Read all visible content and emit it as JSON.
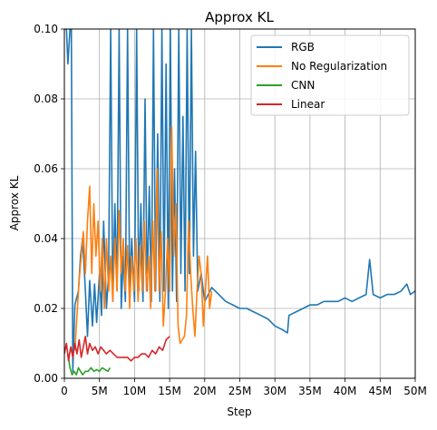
{
  "chart_data": {
    "type": "line",
    "title": "Approx KL",
    "xlabel": "Step",
    "ylabel": "Approx KL",
    "xlim": [
      0,
      50000000
    ],
    "ylim": [
      0,
      0.1
    ],
    "x_ticks": [
      0,
      5000000,
      10000000,
      15000000,
      20000000,
      25000000,
      30000000,
      35000000,
      40000000,
      45000000,
      50000000
    ],
    "x_tick_labels": [
      "0",
      "5M",
      "10M",
      "15M",
      "20M",
      "25M",
      "30M",
      "35M",
      "40M",
      "45M",
      "50M"
    ],
    "y_ticks": [
      0,
      0.02,
      0.04,
      0.06,
      0.08,
      0.1
    ],
    "y_tick_labels": [
      "0.00",
      "0.02",
      "0.04",
      "0.06",
      "0.08",
      "0.10"
    ],
    "grid": true,
    "legend_position": "top-right",
    "series": [
      {
        "name": "RGB",
        "color": "#1f77b4",
        "points": [
          [
            0,
            0.1
          ],
          [
            300000,
            0.1
          ],
          [
            500000,
            0.09
          ],
          [
            800000,
            0.1
          ],
          [
            1000000,
            0.1
          ],
          [
            1200000,
            0.002
          ],
          [
            1500000,
            0.021
          ],
          [
            2000000,
            0.025
          ],
          [
            2300000,
            0.035
          ],
          [
            2600000,
            0.04
          ],
          [
            3000000,
            0.025
          ],
          [
            3300000,
            0.012
          ],
          [
            3600000,
            0.028
          ],
          [
            4000000,
            0.015
          ],
          [
            4300000,
            0.027
          ],
          [
            4600000,
            0.016
          ],
          [
            5000000,
            0.03
          ],
          [
            5300000,
            0.018
          ],
          [
            5600000,
            0.045
          ],
          [
            6000000,
            0.02
          ],
          [
            6300000,
            0.03
          ],
          [
            6600000,
            0.1
          ],
          [
            6900000,
            0.022
          ],
          [
            7200000,
            0.05
          ],
          [
            7500000,
            0.025
          ],
          [
            7800000,
            0.1
          ],
          [
            8100000,
            0.02
          ],
          [
            8400000,
            0.035
          ],
          [
            8700000,
            0.022
          ],
          [
            9000000,
            0.1
          ],
          [
            9300000,
            0.025
          ],
          [
            9600000,
            0.04
          ],
          [
            10000000,
            0.022
          ],
          [
            10300000,
            0.1
          ],
          [
            10600000,
            0.025
          ],
          [
            10900000,
            0.05
          ],
          [
            11200000,
            0.022
          ],
          [
            11500000,
            0.08
          ],
          [
            11800000,
            0.025
          ],
          [
            12100000,
            0.055
          ],
          [
            12400000,
            0.022
          ],
          [
            12700000,
            0.1
          ],
          [
            13000000,
            0.025
          ],
          [
            13300000,
            0.07
          ],
          [
            13600000,
            0.022
          ],
          [
            13900000,
            0.1
          ],
          [
            14200000,
            0.025
          ],
          [
            14500000,
            0.09
          ],
          [
            14800000,
            0.02
          ],
          [
            15100000,
            0.1
          ],
          [
            15400000,
            0.025
          ],
          [
            15700000,
            0.06
          ],
          [
            16000000,
            0.022
          ],
          [
            16300000,
            0.1
          ],
          [
            16600000,
            0.03
          ],
          [
            16900000,
            0.075
          ],
          [
            17200000,
            0.025
          ],
          [
            17500000,
            0.1
          ],
          [
            17800000,
            0.03
          ],
          [
            18100000,
            0.1
          ],
          [
            18400000,
            0.035
          ],
          [
            18700000,
            0.065
          ],
          [
            19000000,
            0.025
          ],
          [
            19500000,
            0.03
          ],
          [
            20000000,
            0.022
          ],
          [
            21000000,
            0.026
          ],
          [
            22000000,
            0.024
          ],
          [
            23000000,
            0.022
          ],
          [
            24000000,
            0.021
          ],
          [
            25000000,
            0.02
          ],
          [
            26000000,
            0.02
          ],
          [
            27000000,
            0.019
          ],
          [
            28000000,
            0.018
          ],
          [
            29000000,
            0.017
          ],
          [
            30000000,
            0.015
          ],
          [
            31000000,
            0.014
          ],
          [
            31800000,
            0.013
          ],
          [
            32000000,
            0.018
          ],
          [
            33000000,
            0.019
          ],
          [
            34000000,
            0.02
          ],
          [
            35000000,
            0.021
          ],
          [
            36000000,
            0.021
          ],
          [
            37000000,
            0.022
          ],
          [
            38000000,
            0.022
          ],
          [
            39000000,
            0.022
          ],
          [
            40000000,
            0.023
          ],
          [
            41000000,
            0.022
          ],
          [
            42000000,
            0.023
          ],
          [
            43000000,
            0.024
          ],
          [
            43500000,
            0.034
          ],
          [
            44000000,
            0.024
          ],
          [
            45000000,
            0.023
          ],
          [
            46000000,
            0.024
          ],
          [
            47000000,
            0.024
          ],
          [
            48000000,
            0.025
          ],
          [
            48800000,
            0.027
          ],
          [
            49300000,
            0.024
          ],
          [
            50000000,
            0.025
          ]
        ]
      },
      {
        "name": "No Regularization",
        "color": "#ff7f0e",
        "points": [
          [
            1500000,
            0.008
          ],
          [
            1800000,
            0.018
          ],
          [
            2100000,
            0.028
          ],
          [
            2400000,
            0.035
          ],
          [
            2700000,
            0.042
          ],
          [
            3000000,
            0.03
          ],
          [
            3300000,
            0.045
          ],
          [
            3600000,
            0.055
          ],
          [
            3900000,
            0.03
          ],
          [
            4200000,
            0.05
          ],
          [
            4500000,
            0.035
          ],
          [
            4800000,
            0.045
          ],
          [
            5100000,
            0.025
          ],
          [
            5400000,
            0.04
          ],
          [
            5700000,
            0.02
          ],
          [
            6000000,
            0.04
          ],
          [
            6300000,
            0.025
          ],
          [
            6600000,
            0.035
          ],
          [
            6900000,
            0.022
          ],
          [
            7200000,
            0.04
          ],
          [
            7500000,
            0.025
          ],
          [
            7800000,
            0.048
          ],
          [
            8100000,
            0.03
          ],
          [
            8400000,
            0.04
          ],
          [
            8700000,
            0.025
          ],
          [
            9000000,
            0.038
          ],
          [
            9300000,
            0.02
          ],
          [
            9600000,
            0.035
          ],
          [
            9900000,
            0.025
          ],
          [
            10200000,
            0.04
          ],
          [
            10500000,
            0.022
          ],
          [
            10800000,
            0.038
          ],
          [
            11100000,
            0.025
          ],
          [
            11400000,
            0.045
          ],
          [
            11700000,
            0.025
          ],
          [
            12000000,
            0.035
          ],
          [
            12300000,
            0.02
          ],
          [
            12600000,
            0.045
          ],
          [
            12900000,
            0.025
          ],
          [
            13200000,
            0.06
          ],
          [
            13500000,
            0.025
          ],
          [
            13800000,
            0.042
          ],
          [
            14100000,
            0.015
          ],
          [
            14400000,
            0.025
          ],
          [
            14700000,
            0.04
          ],
          [
            15000000,
            0.025
          ],
          [
            15300000,
            0.072
          ],
          [
            15600000,
            0.035
          ],
          [
            15900000,
            0.05
          ],
          [
            16200000,
            0.015
          ],
          [
            16500000,
            0.01
          ],
          [
            16800000,
            0.011
          ],
          [
            17100000,
            0.012
          ],
          [
            17400000,
            0.018
          ],
          [
            17700000,
            0.045
          ],
          [
            18000000,
            0.03
          ],
          [
            18300000,
            0.02
          ],
          [
            18600000,
            0.012
          ],
          [
            18900000,
            0.025
          ],
          [
            19200000,
            0.035
          ],
          [
            19500000,
            0.03
          ],
          [
            19800000,
            0.015
          ],
          [
            20100000,
            0.025
          ],
          [
            20400000,
            0.035
          ],
          [
            20700000,
            0.02
          ],
          [
            21000000,
            0.025
          ]
        ]
      },
      {
        "name": "CNN",
        "color": "#2ca02c",
        "points": [
          [
            500000,
            0.007
          ],
          [
            800000,
            0.003
          ],
          [
            1100000,
            0.001
          ],
          [
            1400000,
            0.002
          ],
          [
            1700000,
            0.001
          ],
          [
            2000000,
            0.003
          ],
          [
            2300000,
            0.002
          ],
          [
            2600000,
            0.001
          ],
          [
            3000000,
            0.002
          ],
          [
            3400000,
            0.002
          ],
          [
            3800000,
            0.003
          ],
          [
            4200000,
            0.002
          ],
          [
            4600000,
            0.0025
          ],
          [
            5000000,
            0.002
          ],
          [
            5400000,
            0.003
          ],
          [
            5800000,
            0.0025
          ],
          [
            6200000,
            0.002
          ],
          [
            6500000,
            0.003
          ]
        ]
      },
      {
        "name": "Linear",
        "color": "#d62728",
        "points": [
          [
            0,
            0.007
          ],
          [
            300000,
            0.01
          ],
          [
            600000,
            0.005
          ],
          [
            900000,
            0.009
          ],
          [
            1200000,
            0.006
          ],
          [
            1500000,
            0.01
          ],
          [
            1800000,
            0.007
          ],
          [
            2100000,
            0.011
          ],
          [
            2400000,
            0.006
          ],
          [
            2700000,
            0.009
          ],
          [
            3000000,
            0.012
          ],
          [
            3300000,
            0.007
          ],
          [
            3600000,
            0.01
          ],
          [
            4000000,
            0.008
          ],
          [
            4400000,
            0.009
          ],
          [
            4800000,
            0.007
          ],
          [
            5200000,
            0.009
          ],
          [
            5600000,
            0.008
          ],
          [
            6000000,
            0.007
          ],
          [
            6500000,
            0.008
          ],
          [
            7000000,
            0.007
          ],
          [
            7500000,
            0.006
          ],
          [
            8000000,
            0.006
          ],
          [
            8500000,
            0.006
          ],
          [
            9000000,
            0.006
          ],
          [
            9500000,
            0.005
          ],
          [
            10000000,
            0.006
          ],
          [
            10500000,
            0.006
          ],
          [
            11000000,
            0.007
          ],
          [
            11500000,
            0.007
          ],
          [
            12000000,
            0.006
          ],
          [
            12500000,
            0.008
          ],
          [
            13000000,
            0.007
          ],
          [
            13500000,
            0.009
          ],
          [
            14000000,
            0.008
          ],
          [
            14500000,
            0.011
          ],
          [
            15000000,
            0.012
          ]
        ]
      }
    ]
  }
}
